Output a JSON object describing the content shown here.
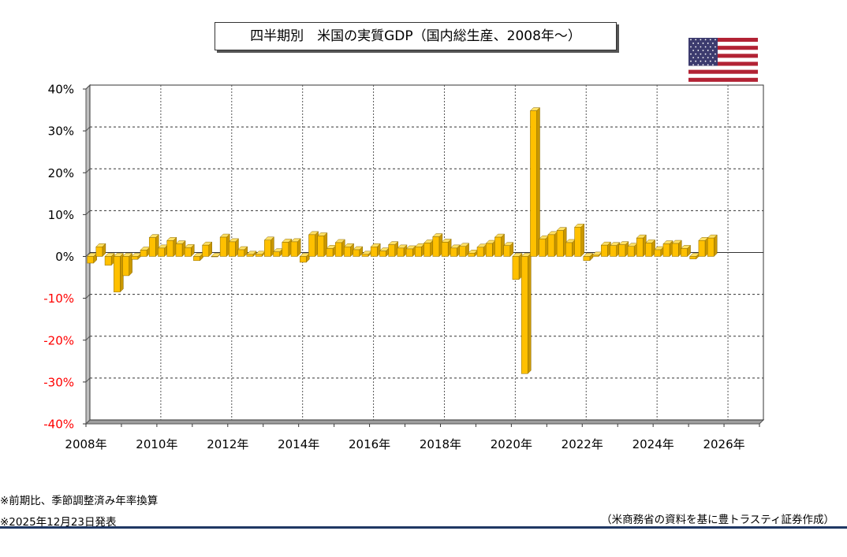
{
  "header": {
    "title": "四半期別　米国の実質GDP（国内総生産、2008年～）",
    "flag_icon": "us-flag-icon"
  },
  "footer": {
    "note1": "※前期比、季節調整済み年率換算",
    "note2": "※2025年12月23日発表",
    "source": "（米商務省の資料を基に豊トラスティ証券作成）"
  },
  "colors": {
    "bar_face": "#ffc000",
    "bar_side": "#c99700",
    "bar_top": "#ffe066",
    "negative_label": "#ff0000",
    "positive_label": "#000000",
    "rule": "#1f3864"
  },
  "chart_data": {
    "type": "bar",
    "xlabel": "",
    "ylabel": "",
    "ylim": [
      -40,
      40
    ],
    "y_ticks": [
      40,
      30,
      20,
      10,
      0,
      -10,
      -20,
      -30,
      -40
    ],
    "y_tick_labels": [
      "40%",
      "30%",
      "20%",
      "10%",
      "0%",
      "-10%",
      "-20%",
      "-30%",
      "-40%"
    ],
    "x_tick_labels": [
      "2008年",
      "2010年",
      "2012年",
      "2014年",
      "2016年",
      "2018年",
      "2020年",
      "2022年",
      "2024年",
      "2026年"
    ],
    "x_range_quarters": [
      0,
      76
    ],
    "grid": true,
    "series": [
      {
        "values": [
          -1.6,
          2.3,
          -2.1,
          -8.5,
          -4.6,
          -0.7,
          1.5,
          4.5,
          2.0,
          3.8,
          3.0,
          2.1,
          -1.0,
          2.7,
          0,
          4.6,
          3.5,
          1.6,
          0.5,
          0.5,
          3.9,
          1.1,
          3.4,
          3.5,
          -1.4,
          5.2,
          4.9,
          1.9,
          3.3,
          2.3,
          1.6,
          0.5,
          2.3,
          1.3,
          2.8,
          2.0,
          1.8,
          2.3,
          3.2,
          4.7,
          3.4,
          2.0,
          2.4,
          0.8,
          2.2,
          3.1,
          4.6,
          2.6,
          -5.5,
          -28.0,
          34.8,
          4.2,
          5.2,
          6.2,
          3.3,
          7.0,
          -1.0,
          0.3,
          2.7,
          2.6,
          2.8,
          2.4,
          4.4,
          3.2,
          1.6,
          3.0,
          3.1,
          1.9,
          -0.6,
          3.8,
          4.4
        ]
      }
    ]
  }
}
